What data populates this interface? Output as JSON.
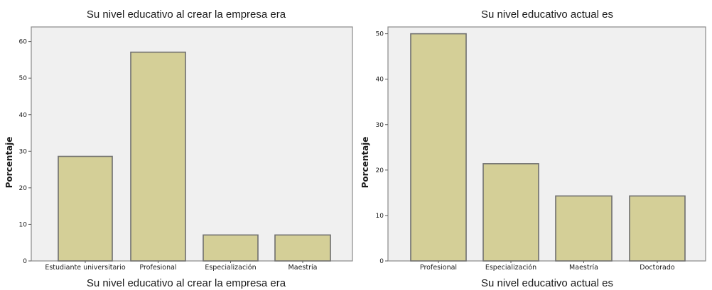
{
  "chart_data": [
    {
      "type": "bar",
      "title": "Su nivel educativo al crear la empresa era",
      "xlabel": "Su nivel educativo al crear la empresa era",
      "ylabel": "Porcentaje",
      "categories": [
        "Estudiante universitario",
        "Profesional",
        "Especialización",
        "Maestría"
      ],
      "values": [
        28.6,
        57.1,
        7.1,
        7.1
      ],
      "yticks": [
        0,
        10,
        20,
        30,
        40,
        50,
        60
      ],
      "ylim": [
        0,
        64
      ],
      "grid": false,
      "bar_color": "#d4cf97"
    },
    {
      "type": "bar",
      "title": "Su nivel educativo actual es",
      "xlabel": "Su nivel educativo actual es",
      "ylabel": "Porcentaje",
      "categories": [
        "Profesional",
        "Especialización",
        "Maestría",
        "Doctorado"
      ],
      "values": [
        50.0,
        21.4,
        14.3,
        14.3
      ],
      "yticks": [
        0,
        10,
        20,
        30,
        40,
        50
      ],
      "ylim": [
        0,
        51.5
      ],
      "grid": false,
      "bar_color": "#d4cf97"
    }
  ]
}
